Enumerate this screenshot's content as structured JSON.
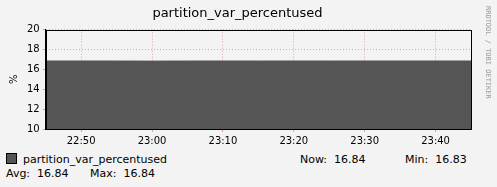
{
  "chart_data": {
    "type": "area",
    "title": "partition_var_percentused",
    "y_label": "%",
    "categories": [
      null,
      "22:50",
      null,
      "23:00",
      null,
      "23:10",
      null,
      "23:20",
      null,
      "23:30",
      null,
      "23:40",
      null
    ],
    "series": [
      {
        "name": "partition_var_percentused",
        "color": "#555555",
        "values": [
          16.84,
          16.84,
          16.84,
          16.83,
          16.84,
          16.84,
          16.84,
          16.84,
          16.84,
          16.84,
          16.84,
          16.84,
          16.84
        ]
      }
    ],
    "ylim": [
      10,
      20
    ],
    "yticks": [
      10,
      12,
      14,
      16,
      18,
      20
    ],
    "grid": true,
    "legend_stats": {
      "Now:": 16.84,
      "Min:": 16.83,
      "Avg:": 16.84,
      "Max:": 16.84
    },
    "annotations": [
      "RRDTOOL / TOBI OETIKER"
    ]
  }
}
